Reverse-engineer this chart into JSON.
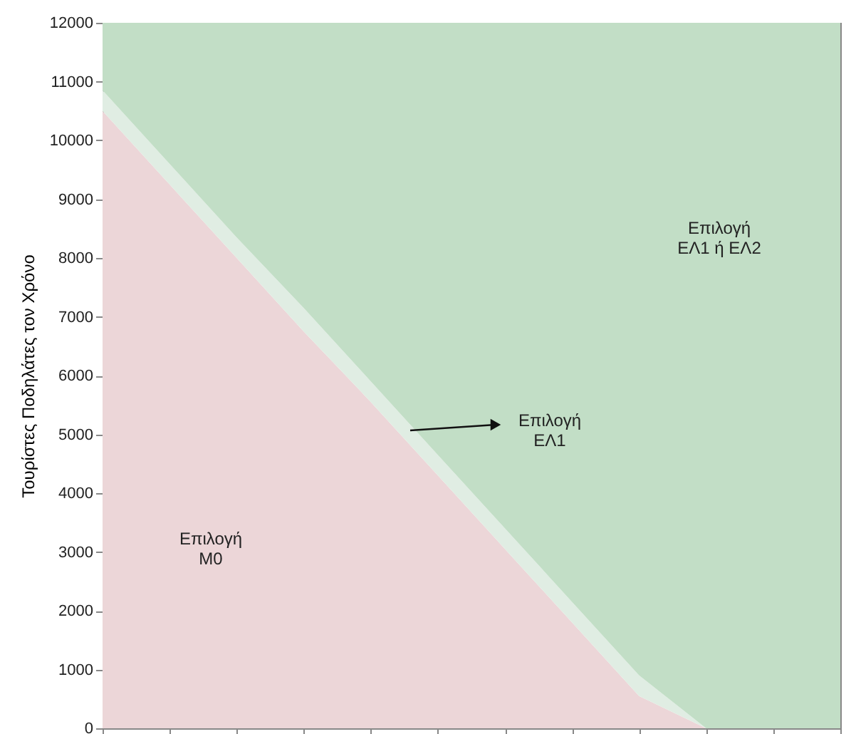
{
  "chart_data": {
    "type": "area",
    "ylabel": "Τουρίστες Ποδηλάτες τον Χρόνο",
    "categories": [
      null,
      null,
      null,
      null,
      null,
      null,
      null,
      null,
      null,
      null,
      null,
      null
    ],
    "ylim": [
      0,
      12000
    ],
    "yticks": [
      0,
      1000,
      2000,
      3000,
      4000,
      5000,
      6000,
      7000,
      8000,
      9000,
      10000,
      11000,
      12000
    ],
    "tick_labels": "y",
    "grid": false,
    "stacked": true,
    "series": [
      {
        "color": "#ecd6d8",
        "values": [
          10500,
          9250,
          8000,
          6750,
          5550,
          4300,
          3050,
          1800,
          550,
          0,
          0,
          0
        ]
      },
      {
        "color": "#e0ede3",
        "values": [
          350,
          350,
          350,
          400,
          350,
          350,
          350,
          350,
          350,
          0,
          0,
          0
        ]
      },
      {
        "color": "#c2dec6",
        "values": [
          1150,
          2400,
          3650,
          4850,
          6100,
          7350,
          8600,
          9850,
          11100,
          12000,
          12000,
          12000
        ]
      }
    ],
    "annotations": [
      "Επιλογή\nΜ0",
      "Επιλογή\nΕΛ1",
      "Επιλογή\nΕΛ1 ή ΕΛ2"
    ]
  }
}
